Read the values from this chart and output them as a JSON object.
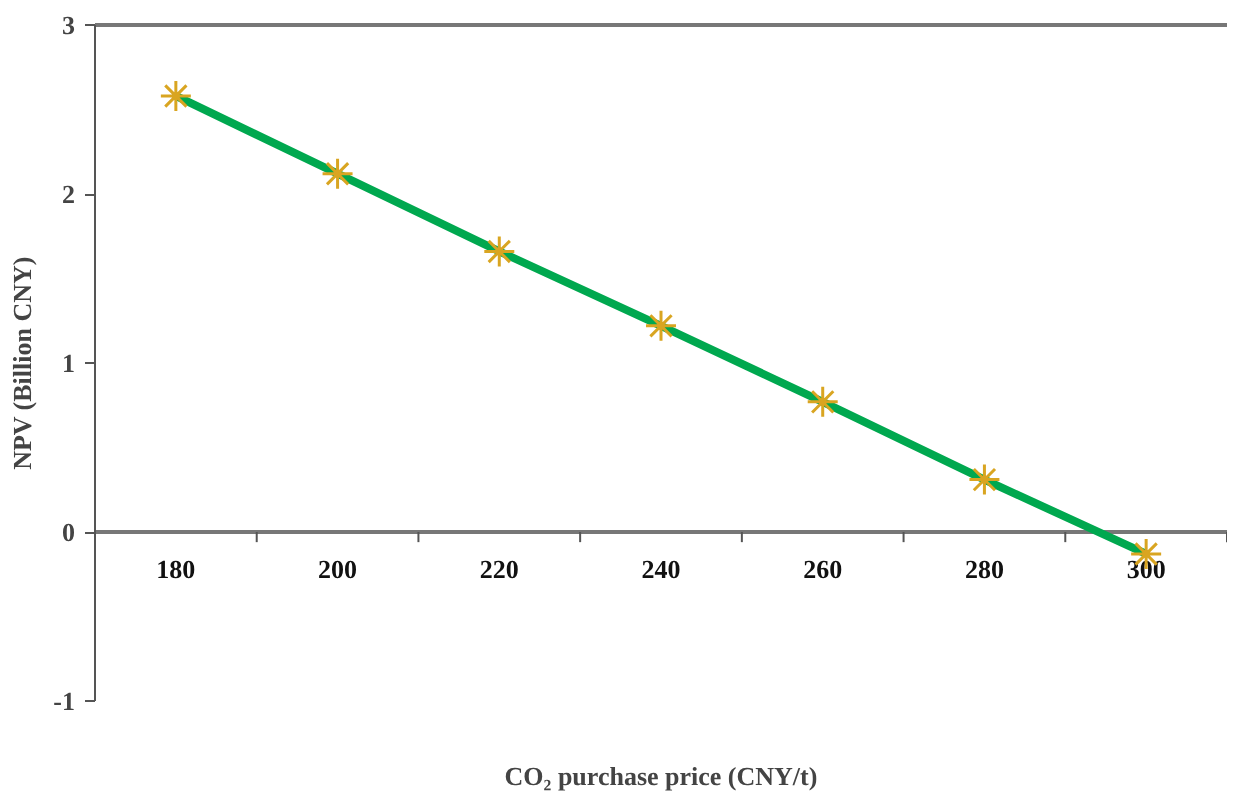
{
  "chart_data": {
    "type": "line",
    "xlabel": "CO₂ purchase price (CNY/t)",
    "ylabel": "NPV (Billion CNY)",
    "categories": [
      "180",
      "200",
      "220",
      "240",
      "260",
      "280",
      "300"
    ],
    "series": [
      {
        "color": "#00a84f",
        "colors": [
          "#d9a521",
          "#d9a521",
          "#d9a521",
          "#d9a521",
          "#d9a521",
          "#d9a521",
          "#d9a521"
        ],
        "values": [
          2.58,
          2.12,
          1.66,
          1.22,
          0.77,
          0.31,
          -0.13
        ]
      }
    ],
    "ylim": [
      -1,
      3
    ],
    "yticks": [
      -1,
      0,
      1,
      2,
      3
    ],
    "grid": false,
    "marker": "cross",
    "line_style": "solid"
  }
}
